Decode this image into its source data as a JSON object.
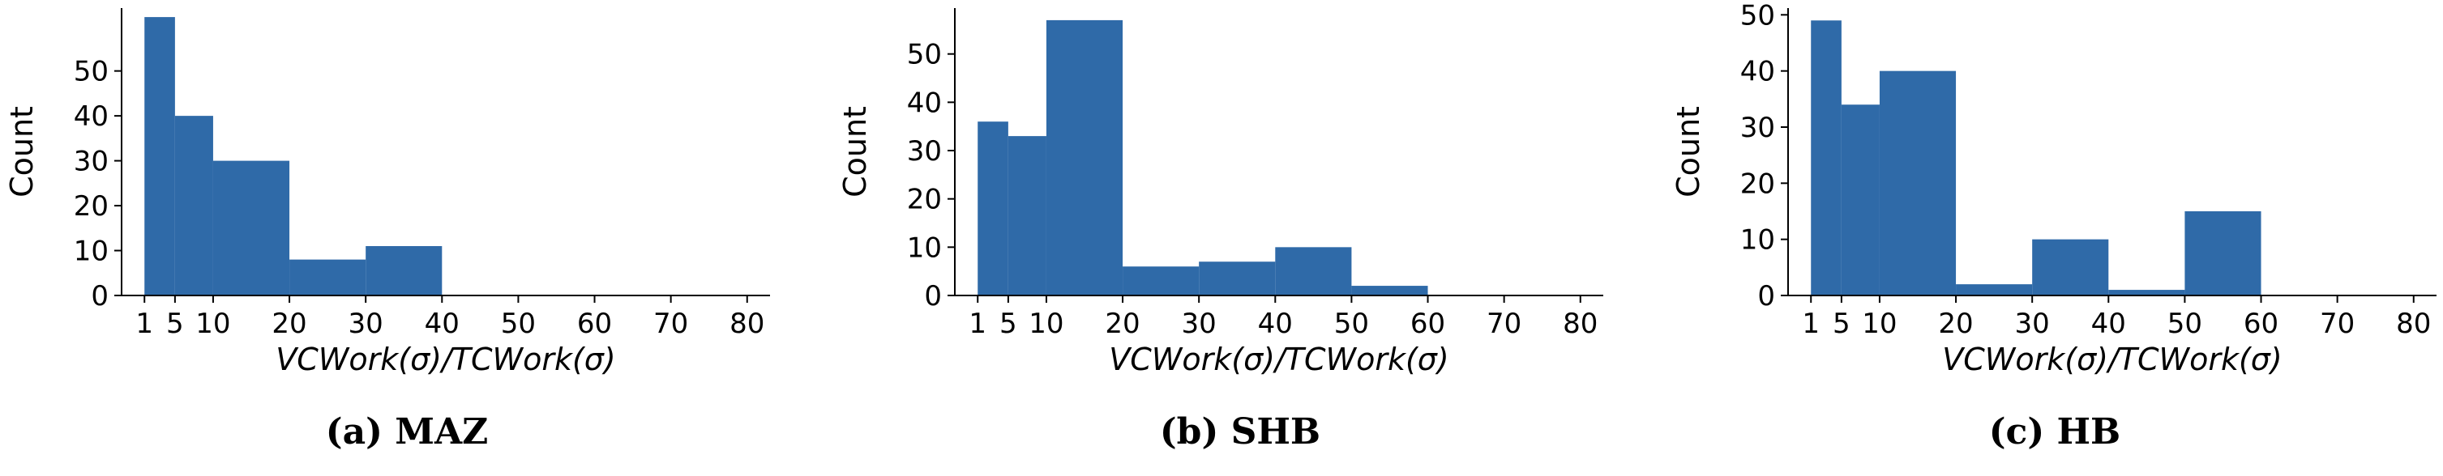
{
  "figures": [
    {
      "caption": "(a) MAZ",
      "chart_data": {
        "type": "bar",
        "histogram": true,
        "bins": [
          [
            1,
            5
          ],
          [
            5,
            10
          ],
          [
            10,
            20
          ],
          [
            20,
            30
          ],
          [
            30,
            40
          ]
        ],
        "values": [
          62,
          40,
          30,
          8,
          11
        ],
        "xlabel": "VCWork(σ)/TCWork(σ)",
        "ylabel": "Count",
        "xticks": [
          1,
          5,
          10,
          20,
          30,
          40,
          50,
          60,
          70,
          80
        ],
        "yticks": [
          0,
          10,
          20,
          30,
          40,
          50
        ],
        "xlim": [
          -2,
          83
        ],
        "ylim": [
          0,
          64
        ],
        "color": "#2f6aa8",
        "grid": false
      }
    },
    {
      "caption": "(b) SHB",
      "chart_data": {
        "type": "bar",
        "histogram": true,
        "bins": [
          [
            1,
            5
          ],
          [
            5,
            10
          ],
          [
            10,
            20
          ],
          [
            20,
            30
          ],
          [
            30,
            40
          ],
          [
            40,
            50
          ],
          [
            50,
            60
          ]
        ],
        "values": [
          36,
          33,
          57,
          6,
          7,
          10,
          2
        ],
        "xlabel": "VCWork(σ)/TCWork(σ)",
        "ylabel": "Count",
        "xticks": [
          1,
          5,
          10,
          20,
          30,
          40,
          50,
          60,
          70,
          80
        ],
        "yticks": [
          0,
          10,
          20,
          30,
          40,
          50
        ],
        "xlim": [
          -2,
          83
        ],
        "ylim": [
          0,
          59.5
        ],
        "color": "#2f6aa8",
        "grid": false
      }
    },
    {
      "caption": "(c) HB",
      "chart_data": {
        "type": "bar",
        "histogram": true,
        "bins": [
          [
            1,
            5
          ],
          [
            5,
            10
          ],
          [
            10,
            20
          ],
          [
            20,
            30
          ],
          [
            30,
            40
          ],
          [
            40,
            50
          ],
          [
            50,
            60
          ]
        ],
        "values": [
          49,
          34,
          40,
          2,
          10,
          1,
          15
        ],
        "xlabel": "VCWork(σ)/TCWork(σ)",
        "ylabel": "Count",
        "xticks": [
          1,
          5,
          10,
          20,
          30,
          40,
          50,
          60,
          70,
          80
        ],
        "yticks": [
          0,
          10,
          20,
          30,
          40,
          50
        ],
        "xlim": [
          -2,
          83
        ],
        "ylim": [
          0,
          51.2
        ],
        "color": "#2f6aa8",
        "grid": false
      }
    }
  ]
}
